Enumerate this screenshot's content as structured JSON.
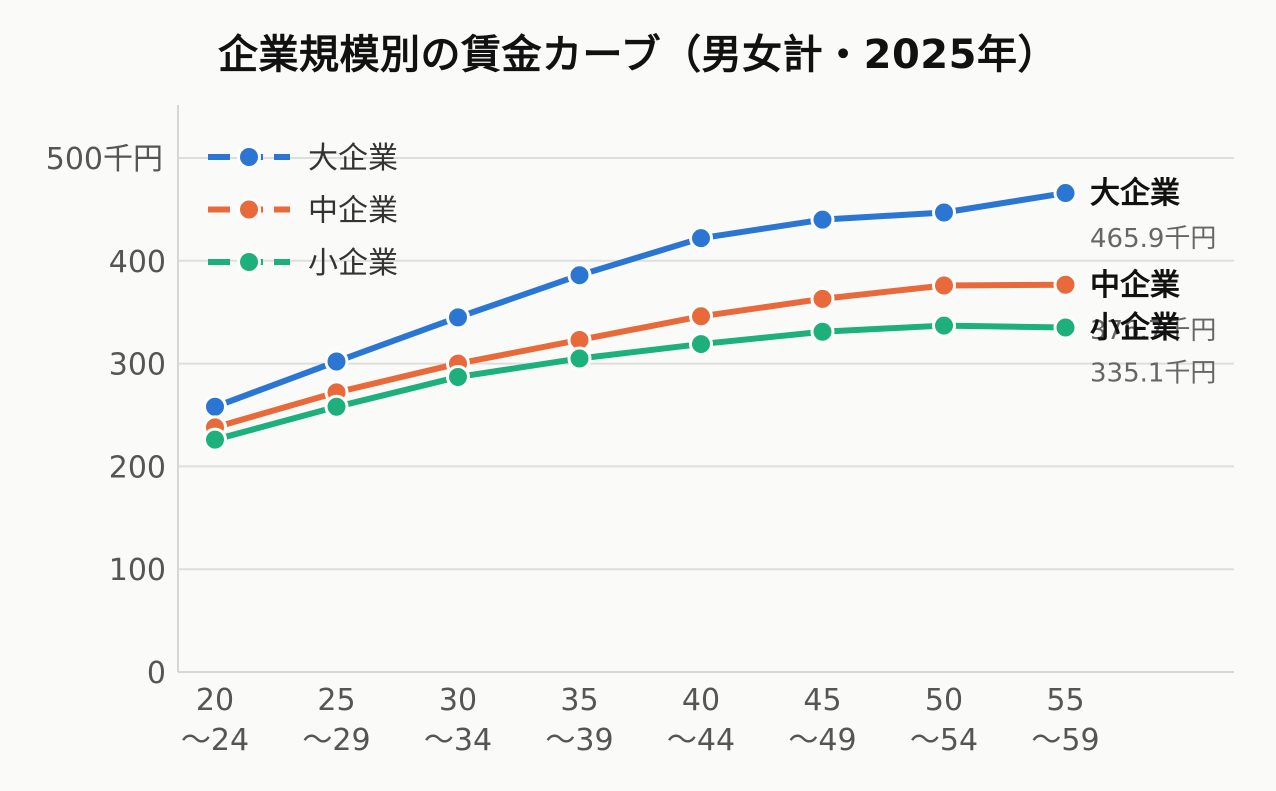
{
  "chart_data": {
    "type": "line",
    "title": "企業規模別の賃金カーブ（男女計・2025年）",
    "y_unit": "千円",
    "ylim": [
      0,
      500
    ],
    "yticks": [
      0,
      100,
      200,
      300,
      400,
      500
    ],
    "grid": true,
    "legend_position": "top-left",
    "categories": [
      [
        "20",
        "〜24"
      ],
      [
        "25",
        "〜29"
      ],
      [
        "30",
        "〜34"
      ],
      [
        "35",
        "〜39"
      ],
      [
        "40",
        "〜44"
      ],
      [
        "45",
        "〜49"
      ],
      [
        "50",
        "〜54"
      ],
      [
        "55",
        "〜59"
      ]
    ],
    "series": [
      {
        "name": "大企業",
        "color": "#2a76d2",
        "values": [
          258,
          302,
          345,
          386,
          422,
          440,
          447,
          465.9
        ],
        "end_label": "465.9千円"
      },
      {
        "name": "中企業",
        "color": "#e8693a",
        "values": [
          238,
          272,
          300,
          323,
          346,
          363,
          376,
          376.7
        ],
        "end_label": "376.7千円"
      },
      {
        "name": "小企業",
        "color": "#1db07c",
        "values": [
          226,
          258,
          287,
          305,
          319,
          331,
          337,
          335.1
        ],
        "end_label": "335.1千円"
      }
    ]
  }
}
